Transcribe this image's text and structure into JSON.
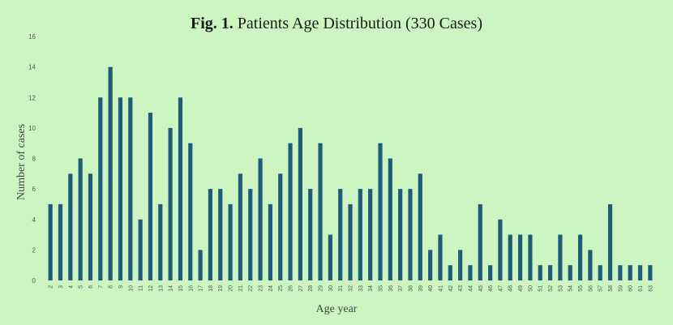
{
  "chart_data": {
    "type": "bar",
    "title_prefix": "Fig. 1.",
    "title": "Patients Age Distribution (330 Cases)",
    "xlabel": "Age year",
    "ylabel": "Number of cases",
    "ylim": [
      0,
      16
    ],
    "yticks": [
      0,
      2,
      4,
      6,
      8,
      10,
      12,
      14,
      16
    ],
    "grid": false,
    "bar_color": "#1f5c7a",
    "categories": [
      "2",
      "3",
      "4",
      "5",
      "6",
      "7",
      "8",
      "9",
      "10",
      "11",
      "12",
      "13",
      "14",
      "15",
      "16",
      "17",
      "18",
      "19",
      "20",
      "21",
      "22",
      "23",
      "24",
      "25",
      "26",
      "27",
      "28",
      "29",
      "30",
      "31",
      "32",
      "33",
      "34",
      "35",
      "36",
      "37",
      "38",
      "39",
      "40",
      "41",
      "42",
      "43",
      "44",
      "45",
      "46",
      "47",
      "48",
      "49",
      "50",
      "51",
      "52",
      "53",
      "54",
      "55",
      "56",
      "57",
      "58",
      "59",
      "60",
      "61",
      "63"
    ],
    "values": [
      5,
      5,
      7,
      8,
      7,
      12,
      14,
      12,
      12,
      4,
      11,
      5,
      10,
      12,
      9,
      2,
      6,
      6,
      5,
      7,
      6,
      8,
      5,
      7,
      9,
      10,
      6,
      9,
      3,
      6,
      5,
      6,
      6,
      9,
      8,
      6,
      6,
      7,
      2,
      3,
      1,
      2,
      1,
      5,
      1,
      4,
      3,
      3,
      3,
      1,
      1,
      3,
      1,
      3,
      2,
      1,
      5,
      1,
      1,
      1,
      1
    ]
  },
  "colors": {
    "background": "#ccf5c2",
    "bar": "#1f5c7a"
  }
}
